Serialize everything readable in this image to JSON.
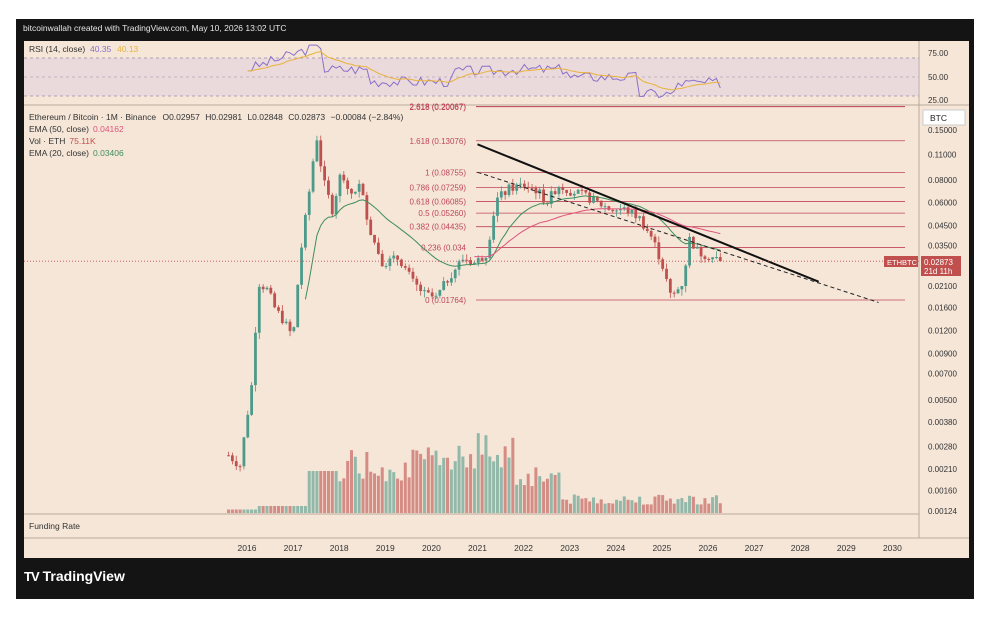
{
  "credit": "bitcoinwallah created with TradingView.com, May 10, 2026 13:02 UTC",
  "brand": {
    "logo": "TV",
    "name": "TradingView"
  },
  "rsi": {
    "label": "RSI (14, close)",
    "value": "40.35",
    "value2": "40.13",
    "ticks": [
      "75.00",
      "50.00",
      "25.00"
    ],
    "tick_values": [
      75,
      50,
      25
    ]
  },
  "legend": {
    "symbol": "Ethereum / Bitcoin · 1M · Binance",
    "o": "O0.02957",
    "h": "H0.02981",
    "l": "L0.02848",
    "c": "C0.02873",
    "chg": "−0.00084 (−2.84%)",
    "ema50": "EMA (50, close)",
    "ema50_val": "0.04162",
    "vol": "Vol · ETH",
    "vol_val": "75.11K",
    "ema20": "EMA (20, close)",
    "ema20_val": "0.03406"
  },
  "funding": "Funding Rate",
  "currency_button": "BTC",
  "price_tag": {
    "symbol": "ETHBTC",
    "price": "0.02873",
    "countdown": "21d 11h"
  },
  "colors": {
    "up": "#4e9a8a",
    "down": "#c0504d",
    "ema50": "#e0537a",
    "ema20": "#3f8f5b",
    "fib": "#c0455a",
    "bg": "#f5e6d8",
    "rsi": "#8a6fc9",
    "rsi_ma": "#e8b23a"
  },
  "chart_data": {
    "type": "candlestick",
    "title": "Ethereum / Bitcoin · 1M · Binance",
    "x_ticks": [
      "2016",
      "2017",
      "2018",
      "2019",
      "2020",
      "2021",
      "2022",
      "2023",
      "2024",
      "2025",
      "2026",
      "2027",
      "2028",
      "2029",
      "2030"
    ],
    "y_scale": "log",
    "y_ticks": [
      "0.15000",
      "0.11000",
      "0.08000",
      "0.06000",
      "0.04500",
      "0.03500",
      "0.02100",
      "0.01600",
      "0.01200",
      "0.00900",
      "0.00700",
      "0.00500",
      "0.00380",
      "0.00280",
      "0.00210",
      "0.00160",
      "0.00124"
    ],
    "y_tick_values": [
      0.15,
      0.11,
      0.08,
      0.06,
      0.045,
      0.035,
      0.021,
      0.016,
      0.012,
      0.009,
      0.007,
      0.005,
      0.0038,
      0.0028,
      0.0021,
      0.0016,
      0.00124
    ],
    "fib_levels": [
      {
        "label": "2.618 (0.20067)",
        "value": 0.20067
      },
      {
        "label": "1.618 (0.13076)",
        "value": 0.13076
      },
      {
        "label": "1 (0.08755)",
        "value": 0.08755
      },
      {
        "label": "0.786 (0.07259)",
        "value": 0.07259
      },
      {
        "label": "0.618 (0.06085)",
        "value": 0.06085
      },
      {
        "label": "0.5 (0.05260)",
        "value": 0.0526
      },
      {
        "label": "0.382 (0.04435)",
        "value": 0.04435
      },
      {
        "label": "0.236 (0.034",
        "value": 0.0341
      },
      {
        "label": "0 (0.01764)",
        "value": 0.01764
      }
    ],
    "ohlc_anchors": [
      [
        2015.6,
        0.0025
      ],
      [
        2015.85,
        0.0022
      ],
      [
        2016.1,
        0.006
      ],
      [
        2016.25,
        0.022
      ],
      [
        2016.45,
        0.02
      ],
      [
        2016.6,
        0.016
      ],
      [
        2016.8,
        0.0135
      ],
      [
        2017.0,
        0.011
      ],
      [
        2017.15,
        0.03
      ],
      [
        2017.4,
        0.085
      ],
      [
        2017.5,
        0.145
      ],
      [
        2017.65,
        0.08
      ],
      [
        2017.85,
        0.055
      ],
      [
        2018.05,
        0.09
      ],
      [
        2018.2,
        0.065
      ],
      [
        2018.45,
        0.075
      ],
      [
        2018.7,
        0.04
      ],
      [
        2018.95,
        0.028
      ],
      [
        2019.3,
        0.03
      ],
      [
        2019.6,
        0.022
      ],
      [
        2019.85,
        0.019
      ],
      [
        2020.1,
        0.018
      ],
      [
        2020.4,
        0.024
      ],
      [
        2020.7,
        0.03
      ],
      [
        2020.95,
        0.028
      ],
      [
        2021.2,
        0.032
      ],
      [
        2021.4,
        0.062
      ],
      [
        2021.7,
        0.072
      ],
      [
        2022.0,
        0.075
      ],
      [
        2022.3,
        0.07
      ],
      [
        2022.5,
        0.06
      ],
      [
        2022.75,
        0.075
      ],
      [
        2023.0,
        0.07
      ],
      [
        2023.3,
        0.066
      ],
      [
        2023.6,
        0.06
      ],
      [
        2023.9,
        0.055
      ],
      [
        2024.2,
        0.055
      ],
      [
        2024.5,
        0.05
      ],
      [
        2024.8,
        0.038
      ],
      [
        2025.0,
        0.028
      ],
      [
        2025.2,
        0.018
      ],
      [
        2025.45,
        0.022
      ],
      [
        2025.6,
        0.038
      ],
      [
        2025.8,
        0.032
      ],
      [
        2026.0,
        0.031
      ],
      [
        2026.3,
        0.0287
      ]
    ],
    "last_price": 0.02873,
    "trendline_solid": {
      "from": [
        2021.0,
        0.125
      ],
      "to": [
        2028.4,
        0.0222
      ]
    },
    "trendline_dashed": {
      "from": [
        2021.0,
        0.088
      ],
      "to": [
        2029.7,
        0.0171
      ]
    },
    "volume_scale_note": "relative"
  }
}
